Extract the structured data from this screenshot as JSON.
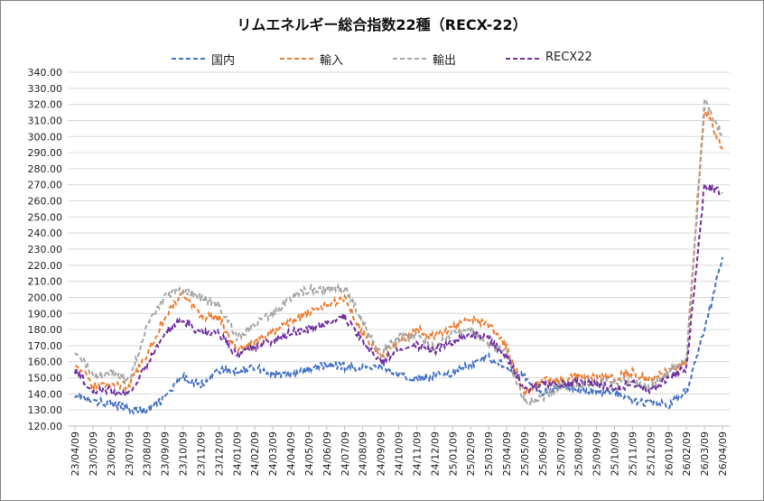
{
  "chart_data": {
    "type": "line",
    "title": "リムエネルギー総合指数22種（RECX-22）",
    "ylim": [
      120,
      340
    ],
    "y_ticks": [
      "120.00",
      "130.00",
      "140.00",
      "150.00",
      "160.00",
      "170.00",
      "180.00",
      "190.00",
      "200.00",
      "210.00",
      "220.00",
      "230.00",
      "240.00",
      "250.00",
      "260.00",
      "270.00",
      "280.00",
      "290.00",
      "300.00",
      "310.00",
      "320.00",
      "330.00",
      "340.00"
    ],
    "x_ticks": [
      "23/04/09",
      "23/05/09",
      "23/06/09",
      "23/07/09",
      "23/08/09",
      "23/09/09",
      "23/10/09",
      "23/11/09",
      "23/12/09",
      "24/01/09",
      "24/02/09",
      "24/03/09",
      "24/04/09",
      "24/05/09",
      "24/06/09",
      "24/07/09",
      "24/08/09",
      "24/09/09",
      "24/10/09",
      "24/11/09",
      "24/12/09",
      "25/01/09",
      "25/02/09",
      "25/03/09",
      "25/04/09",
      "25/05/09",
      "25/06/09",
      "25/07/09",
      "25/08/09",
      "25/09/09",
      "25/10/09",
      "25/11/09",
      "25/12/09",
      "26/01/09",
      "26/02/09",
      "26/03/09",
      "26/04/09"
    ],
    "grid": true,
    "legend_position": "top",
    "series": [
      {
        "name": "国内",
        "color": "#4472c4",
        "values": [
          140,
          135,
          134,
          131,
          129,
          138,
          150,
          146,
          155,
          154,
          157,
          152,
          152,
          155,
          158,
          157,
          156,
          158,
          151,
          149,
          152,
          153,
          158,
          163,
          157,
          150,
          141,
          145,
          143,
          141,
          141,
          135,
          134,
          133,
          142,
          180,
          225
        ]
      },
      {
        "name": "輸入",
        "color": "#ed7d31",
        "values": [
          160,
          145,
          146,
          145,
          165,
          188,
          203,
          188,
          187,
          167,
          172,
          178,
          185,
          190,
          195,
          200,
          178,
          163,
          172,
          180,
          175,
          182,
          187,
          183,
          170,
          140,
          148,
          148,
          151,
          150,
          150,
          154,
          148,
          155,
          160,
          318,
          292
        ]
      },
      {
        "name": "輸出",
        "color": "#a5a5a5",
        "values": [
          168,
          152,
          153,
          148,
          182,
          200,
          205,
          200,
          195,
          175,
          183,
          190,
          200,
          205,
          205,
          206,
          185,
          165,
          175,
          176,
          168,
          178,
          180,
          170,
          165,
          135,
          138,
          145,
          145,
          147,
          148,
          148,
          143,
          154,
          162,
          323,
          300
        ]
      },
      {
        "name": "RECX22",
        "color": "#7030a0",
        "values": [
          155,
          142,
          142,
          140,
          158,
          178,
          186,
          178,
          178,
          164,
          170,
          173,
          178,
          180,
          184,
          188,
          173,
          160,
          167,
          170,
          167,
          172,
          177,
          175,
          163,
          142,
          145,
          146,
          147,
          146,
          144,
          146,
          142,
          150,
          156,
          270,
          265
        ]
      }
    ]
  }
}
